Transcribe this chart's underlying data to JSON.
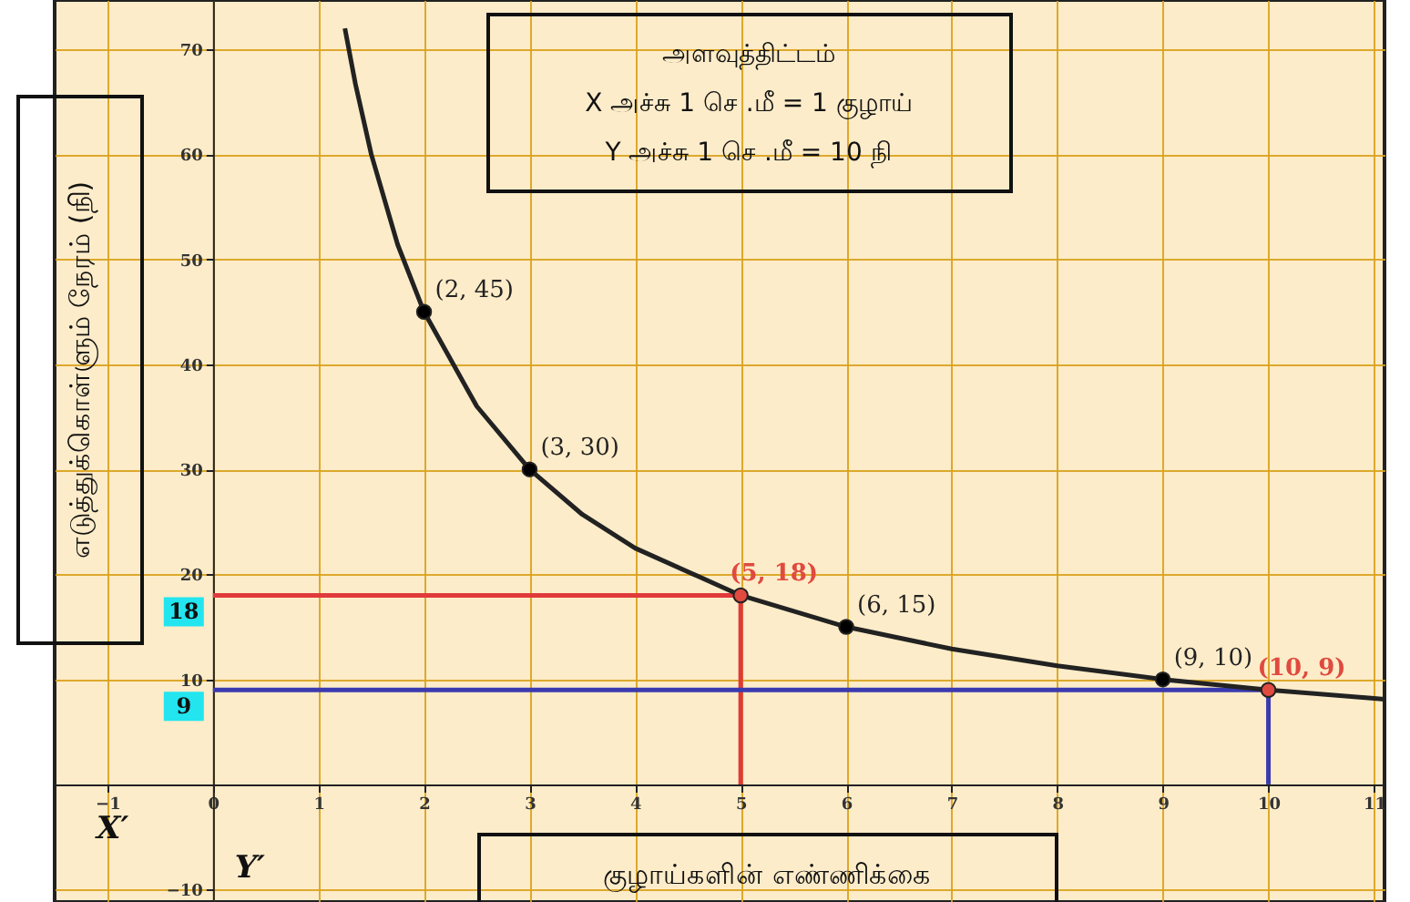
{
  "chart_data": {
    "type": "line",
    "xlabel": "குழாய்களின் எண்ணிக்கை",
    "ylabel": "எடுத்துக்கொள்ளும் நேரம் (நி)",
    "xlim": [
      -1.5,
      11.1
    ],
    "ylim": [
      -11.2,
      74.7
    ],
    "xticks": [
      -1,
      0,
      1,
      2,
      3,
      4,
      5,
      6,
      7,
      8,
      9,
      10,
      11
    ],
    "yticks": [
      -10,
      10,
      20,
      30,
      40,
      50,
      60,
      70
    ],
    "grid": true,
    "series": [
      {
        "color": "#222222",
        "marker": "none",
        "x": [
          1.25,
          1.35,
          1.5,
          1.75,
          2,
          2.5,
          3,
          3.5,
          4,
          5,
          6,
          7,
          8,
          9,
          10,
          11,
          11.1
        ],
        "values": [
          72,
          66.7,
          60,
          51.4,
          45,
          36,
          30,
          25.7,
          22.5,
          18,
          15,
          12.9,
          11.3,
          10,
          9,
          8.2,
          8.1
        ]
      },
      {
        "type": "scatter",
        "color": "#000000",
        "marker": "circle",
        "x": [
          2,
          3,
          6,
          9
        ],
        "values": [
          45,
          30,
          15,
          10
        ]
      },
      {
        "type": "scatter",
        "color": "#e04a3f",
        "marker": "circle",
        "x": [
          5,
          10
        ],
        "values": [
          18,
          9
        ]
      }
    ],
    "ref_lines": [
      {
        "axis": "y",
        "value": 18,
        "label": "18",
        "color": "#e03a3a"
      },
      {
        "axis": "x",
        "value": 5,
        "color": "#e03a3a"
      },
      {
        "axis": "y",
        "value": 9,
        "label": "9",
        "color": "#3a3ab0"
      },
      {
        "axis": "x",
        "value": 10,
        "color": "#3a3ab0"
      }
    ],
    "annotations": [
      "அளவுத்திட்டம்",
      "X அச்சு 1 செ .மீ = 1 குழாய்",
      "Y அச்சு 1 செ .மீ =  10 நி",
      "X′",
      "Y′",
      {
        "text": "(2, 45)",
        "x": 2,
        "y": 45
      },
      {
        "text": "(3, 30)",
        "x": 3,
        "y": 30
      },
      {
        "text": "(5, 18)",
        "x": 5,
        "y": 18
      },
      {
        "text": "(6, 15)",
        "x": 6,
        "y": 15
      },
      {
        "text": "(9, 10)",
        "x": 9,
        "y": 10
      },
      {
        "text": "(10, 9)",
        "x": 10,
        "y": 9
      }
    ]
  }
}
